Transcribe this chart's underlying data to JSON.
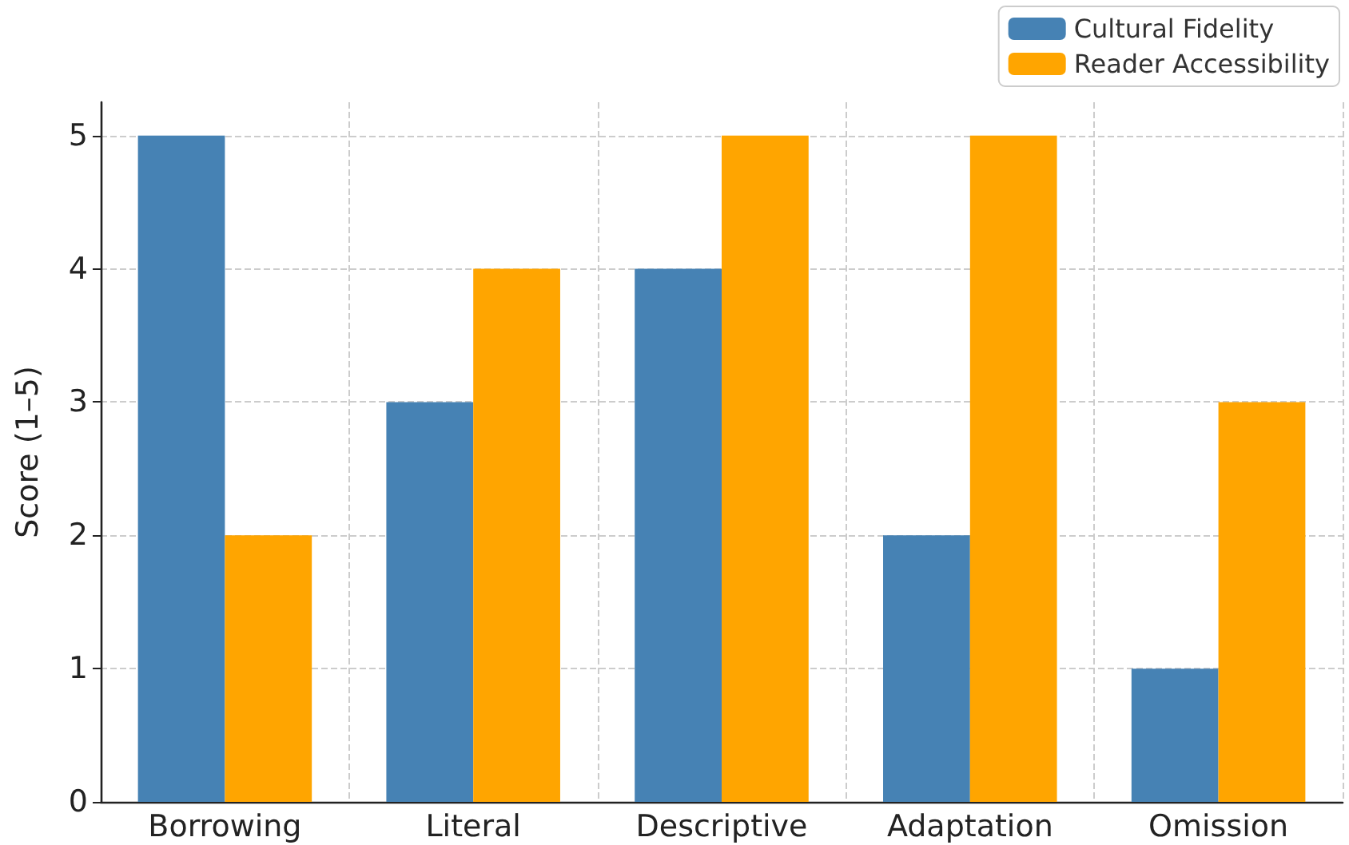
{
  "chart_data": {
    "type": "bar",
    "ylabel": "Score (1–5)",
    "categories": [
      "Borrowing",
      "Literal",
      "Descriptive",
      "Adaptation",
      "Omission"
    ],
    "series": [
      {
        "name": "Cultural Fidelity",
        "color": "#4682b4",
        "values": [
          5,
          3,
          4,
          2,
          1
        ]
      },
      {
        "name": "Reader Accessibility",
        "color": "#ffa500",
        "values": [
          2,
          4,
          5,
          5,
          3
        ]
      }
    ],
    "ylim": [
      0,
      5.25
    ],
    "yticks": [
      0,
      1,
      2,
      3,
      4,
      5
    ],
    "grid": true,
    "legend": "top right"
  }
}
